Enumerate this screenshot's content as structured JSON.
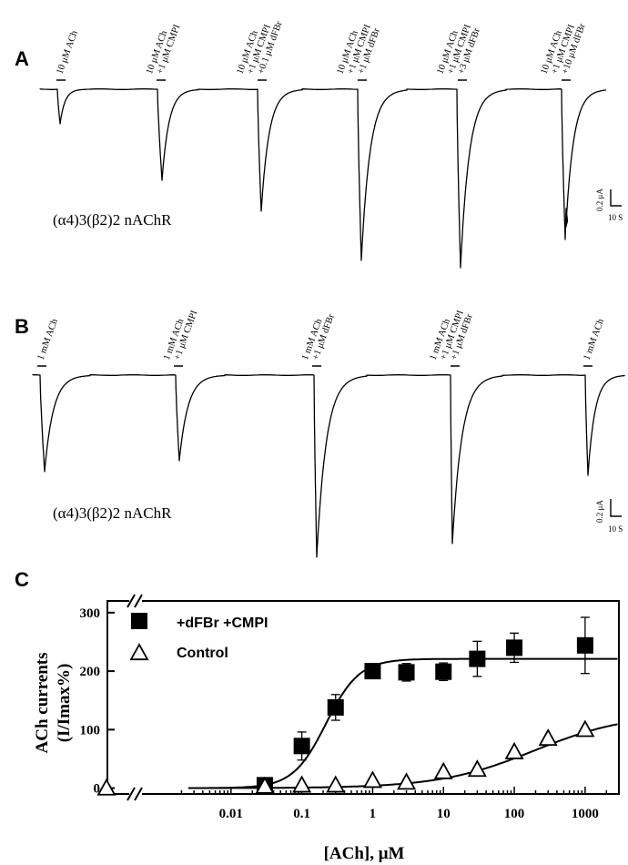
{
  "panel_A": {
    "letter": "A",
    "receptor_label": "(α4)3(β2)2 nAChR",
    "scale_bar": {
      "current": "0.2 μA",
      "time": "10 S"
    },
    "applications": [
      {
        "lines": [
          "10 μM ACh"
        ]
      },
      {
        "lines": [
          "10 μM ACh",
          "+1 μM CMPI"
        ]
      },
      {
        "lines": [
          "10 μM ACh",
          "+1 μM CMPI",
          "+0.1 μM dFBr"
        ]
      },
      {
        "lines": [
          "10 μM ACh",
          "+1 μM CMPI",
          "+1 μM dFBr"
        ]
      },
      {
        "lines": [
          "10 μM ACh",
          "+1 μM CMPI",
          "+3 μM dFBr"
        ]
      },
      {
        "lines": [
          "10 μM ACh",
          "+1 μM CMPI",
          "+10 μM dFBr"
        ]
      }
    ]
  },
  "panel_B": {
    "letter": "B",
    "receptor_label": "(α4)3(β2)2 nAChR",
    "scale_bar": {
      "current": "0.2 μA",
      "time": "10 S"
    },
    "applications": [
      {
        "lines": [
          "1 mM ACh"
        ]
      },
      {
        "lines": [
          "1 mM ACh",
          "+1 μM CMPI"
        ]
      },
      {
        "lines": [
          "1 mM ACh",
          "+1 μM dFBr"
        ]
      },
      {
        "lines": [
          "1 mM ACh",
          "+1 μM CMPI",
          "+1 μM dFBr"
        ]
      },
      {
        "lines": [
          "1 mM ACh"
        ]
      }
    ]
  },
  "chart_data": {
    "letter": "C",
    "type": "scatter",
    "xlabel": "[ACh], μM",
    "ylabel_line1": "ACh currents",
    "ylabel_line2": "(I/Imax%)",
    "x_scale": "log",
    "xlim": [
      0.001,
      3000
    ],
    "ylim": [
      -10,
      320
    ],
    "x_ticks": [
      0.01,
      0.1,
      1,
      10,
      100,
      1000
    ],
    "x_tick_labels": [
      "0.01",
      "0.1",
      "1",
      "10",
      "100",
      "1000"
    ],
    "y_ticks": [
      0,
      100,
      200,
      300
    ],
    "y_tick_labels": [
      "0",
      "100",
      "200",
      "300"
    ],
    "axis_break": true,
    "legend_position": "top-left",
    "series": [
      {
        "name": "+dFBr +CMPI",
        "marker": "filled-square",
        "x": [
          0.03,
          0.1,
          0.3,
          1,
          3,
          10,
          30,
          100,
          1000
        ],
        "y": [
          5,
          72,
          138,
          200,
          198,
          199,
          221,
          240,
          244
        ],
        "err": [
          6,
          24,
          22,
          8,
          15,
          15,
          30,
          25,
          48
        ]
      },
      {
        "name": "Control",
        "marker": "open-triangle",
        "x_no_ach": [
          0
        ],
        "x": [
          0.03,
          0.1,
          0.3,
          1,
          3,
          10,
          30,
          100,
          300,
          1000
        ],
        "y": [
          3,
          5,
          5,
          13,
          10,
          28,
          32,
          62,
          85,
          100
        ],
        "y_no_ach": 0
      }
    ],
    "fits": [
      {
        "series": "+dFBr +CMPI",
        "top": 221,
        "bottom": 0,
        "ec50": 0.22,
        "hill": 1.85
      },
      {
        "series": "Control",
        "top": 128,
        "bottom": 0,
        "ec50": 190,
        "hill": 0.65
      }
    ]
  }
}
